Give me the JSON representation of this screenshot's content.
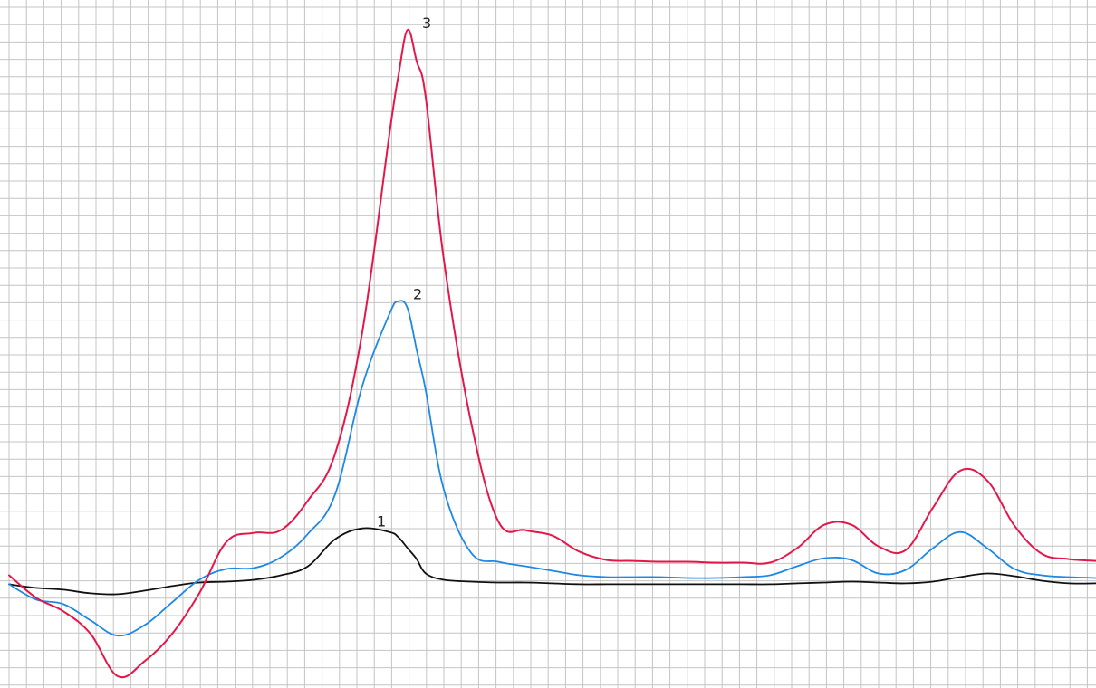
{
  "chart_data": {
    "type": "line",
    "title": "",
    "xlabel": "",
    "ylabel": "",
    "grid": true,
    "xlim": [
      0,
      120
    ],
    "ylim": [
      -10.9,
      62.6
    ],
    "series": [
      {
        "name": "1",
        "color": "#111111",
        "x": [
          0,
          3,
          6,
          9,
          12,
          15,
          18,
          21,
          24,
          27,
          30,
          33,
          36,
          39,
          42,
          43,
          44,
          45,
          46,
          48,
          51,
          54,
          57,
          60,
          63,
          66,
          69,
          72,
          75,
          78,
          81,
          84,
          87,
          90,
          93,
          96,
          99,
          102,
          105,
          108,
          111,
          114,
          117,
          120
        ],
        "y": [
          0,
          -0.4,
          -0.6,
          -1,
          -1.1,
          -0.7,
          -0.2,
          0.2,
          0.3,
          0.5,
          1,
          2,
          5,
          6.2,
          5.8,
          5.2,
          4,
          2.8,
          1.2,
          0.5,
          0.3,
          0.2,
          0.2,
          0.1,
          0,
          0,
          0,
          0,
          0,
          0,
          0,
          0,
          0.1,
          0.2,
          0.3,
          0.2,
          0.1,
          0.3,
          0.8,
          1.2,
          0.9,
          0.4,
          0.1,
          0.1
        ]
      },
      {
        "name": "2",
        "color": "#1e88e5",
        "x": [
          0,
          3,
          6,
          9,
          12,
          15,
          18,
          21,
          24,
          27,
          30,
          33,
          36,
          39,
          42,
          43,
          44,
          45,
          46,
          48,
          51,
          54,
          57,
          60,
          63,
          66,
          69,
          72,
          75,
          78,
          81,
          84,
          87,
          90,
          93,
          96,
          99,
          102,
          105,
          108,
          111,
          114,
          117,
          120
        ],
        "y": [
          0,
          -1.7,
          -2.2,
          -4,
          -5.7,
          -4.5,
          -2,
          0.5,
          1.7,
          1.8,
          3,
          5.6,
          10,
          22,
          30,
          31.4,
          30.6,
          26,
          21.5,
          10.5,
          3.5,
          2.5,
          2,
          1.5,
          1,
          0.8,
          0.8,
          0.8,
          0.7,
          0.7,
          0.8,
          1,
          2,
          2.9,
          2.7,
          1.2,
          1.6,
          4,
          5.8,
          4,
          1.7,
          1,
          0.8,
          0.7
        ]
      },
      {
        "name": "3",
        "color": "#e3184a",
        "x": [
          0,
          3,
          6,
          9,
          12,
          15,
          18,
          21,
          24,
          27,
          30,
          33,
          36,
          39,
          42,
          43,
          44,
          45,
          46,
          48,
          51,
          54,
          57,
          60,
          63,
          66,
          69,
          72,
          75,
          78,
          81,
          84,
          87,
          90,
          93,
          96,
          99,
          102,
          105,
          108,
          111,
          114,
          117,
          120
        ],
        "y": [
          1,
          -1.5,
          -3,
          -5.5,
          -10.2,
          -8.5,
          -5.5,
          -1,
          4.7,
          5.7,
          6,
          9.3,
          14.5,
          28,
          50,
          56.5,
          61.5,
          58,
          54,
          36,
          18,
          7,
          6,
          5.4,
          3.6,
          2.7,
          2.6,
          2.5,
          2.5,
          2.4,
          2.4,
          2.4,
          4,
          6.6,
          6.6,
          4.2,
          3.8,
          8.5,
          12.6,
          11.5,
          6.5,
          3.4,
          2.8,
          2.6
        ]
      }
    ]
  }
}
